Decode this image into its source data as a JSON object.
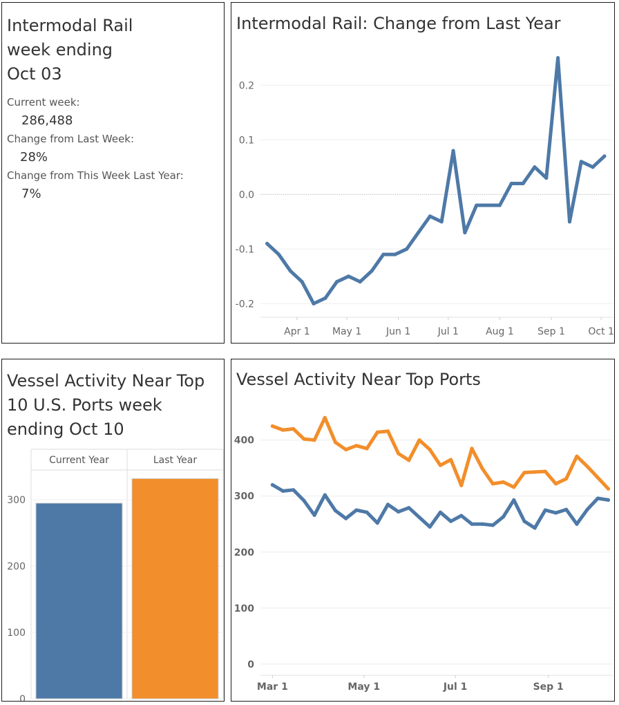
{
  "stats": {
    "title": "Intermodal Rail\nweek ending\nOct 03",
    "current_label": "Current week:",
    "current_value": "286,488",
    "wow_label": "Change from Last Week:",
    "wow_value": "28%",
    "yoy_label": "Change from This Week Last Year:",
    "yoy_value": "7%"
  },
  "rail": {
    "title": "Intermodal Rail: Change from Last Year"
  },
  "vessel_bar": {
    "title": "Vessel Activity Near Top\n10 U.S. Ports week\nending Oct 10"
  },
  "vessel_line": {
    "title": "Vessel Activity Near Top Ports"
  },
  "colors": {
    "blue": "#4e79a7",
    "orange": "#f28e2b",
    "grid": "#eeeeee",
    "axis_text": "#666666"
  },
  "chart_data": [
    {
      "type": "line",
      "title": "Intermodal Rail: Change from Last Year",
      "x": [
        "2020-03-14",
        "2020-03-21",
        "2020-03-28",
        "2020-04-04",
        "2020-04-11",
        "2020-04-18",
        "2020-04-25",
        "2020-05-02",
        "2020-05-09",
        "2020-05-16",
        "2020-05-23",
        "2020-05-30",
        "2020-06-06",
        "2020-06-13",
        "2020-06-20",
        "2020-06-27",
        "2020-07-04",
        "2020-07-11",
        "2020-07-18",
        "2020-07-25",
        "2020-08-01",
        "2020-08-08",
        "2020-08-15",
        "2020-08-22",
        "2020-08-29",
        "2020-09-05",
        "2020-09-12",
        "2020-09-19",
        "2020-09-26",
        "2020-10-03"
      ],
      "series": [
        {
          "values": [
            -0.09,
            -0.11,
            -0.14,
            -0.16,
            -0.2,
            -0.19,
            -0.16,
            -0.15,
            -0.16,
            -0.14,
            -0.11,
            -0.11,
            -0.1,
            -0.07,
            -0.04,
            -0.05,
            0.08,
            -0.07,
            -0.02,
            -0.02,
            -0.02,
            0.02,
            0.02,
            0.05,
            0.03,
            0.25,
            -0.05,
            0.06,
            0.05,
            0.07
          ]
        }
      ],
      "x_ticks": [
        "Apr 1",
        "May 1",
        "Jun 1",
        "Jul 1",
        "Aug 1",
        "Sep 1",
        "Oct 1"
      ],
      "x_tick_dates": [
        "2020-04-01",
        "2020-05-01",
        "2020-06-01",
        "2020-07-01",
        "2020-08-01",
        "2020-09-01",
        "2020-10-01"
      ],
      "y_ticks": [
        "-0.2",
        "-0.1",
        "0.0",
        "0.1",
        "0.2"
      ],
      "xlim": [
        "2020-03-10",
        "2020-10-08"
      ],
      "ylim": [
        -0.225,
        0.275
      ],
      "grid": true,
      "zero_line": "dotted"
    },
    {
      "type": "bar",
      "title": "Vessel Activity Near Top 10 U.S. Ports week ending Oct 10",
      "categories": [
        "Current Year",
        "Last Year"
      ],
      "values": [
        295,
        332
      ],
      "colors": [
        "#4e79a7",
        "#f28e2b"
      ],
      "y_ticks": [
        "0",
        "100",
        "200",
        "300"
      ],
      "ylim": [
        0,
        345
      ],
      "grid": true
    },
    {
      "type": "line",
      "title": "Vessel Activity Near Top Ports",
      "x": [
        "2020-03-01",
        "2020-03-08",
        "2020-03-15",
        "2020-03-22",
        "2020-03-29",
        "2020-04-05",
        "2020-04-12",
        "2020-04-19",
        "2020-04-26",
        "2020-05-03",
        "2020-05-10",
        "2020-05-17",
        "2020-05-24",
        "2020-05-31",
        "2020-06-07",
        "2020-06-14",
        "2020-06-21",
        "2020-06-28",
        "2020-07-05",
        "2020-07-12",
        "2020-07-19",
        "2020-07-26",
        "2020-08-02",
        "2020-08-09",
        "2020-08-16",
        "2020-08-23",
        "2020-08-30",
        "2020-09-06",
        "2020-09-13",
        "2020-09-20",
        "2020-09-27",
        "2020-10-04",
        "2020-10-11"
      ],
      "series": [
        {
          "color": "#f28e2b",
          "values": [
            425,
            418,
            420,
            402,
            400,
            440,
            396,
            383,
            390,
            385,
            414,
            416,
            376,
            364,
            400,
            383,
            355,
            365,
            319,
            385,
            349,
            322,
            325,
            316,
            342,
            343,
            344,
            322,
            331,
            371,
            353,
            333,
            313
          ]
        },
        {
          "color": "#4e79a7",
          "values": [
            320,
            309,
            311,
            292,
            266,
            302,
            274,
            260,
            275,
            271,
            252,
            285,
            272,
            279,
            262,
            245,
            271,
            255,
            265,
            250,
            250,
            248,
            263,
            293,
            255,
            243,
            275,
            270,
            276,
            250,
            276,
            296,
            293
          ]
        }
      ],
      "x_ticks": [
        "Mar 1",
        "May 1",
        "Jul 1",
        "Sep 1"
      ],
      "x_tick_dates": [
        "2020-03-01",
        "2020-05-01",
        "2020-07-01",
        "2020-09-01"
      ],
      "y_ticks": [
        "0",
        "100",
        "200",
        "300",
        "400"
      ],
      "xlim": [
        "2020-02-22",
        "2020-10-14"
      ],
      "ylim": [
        -20,
        470
      ],
      "grid": true
    }
  ]
}
